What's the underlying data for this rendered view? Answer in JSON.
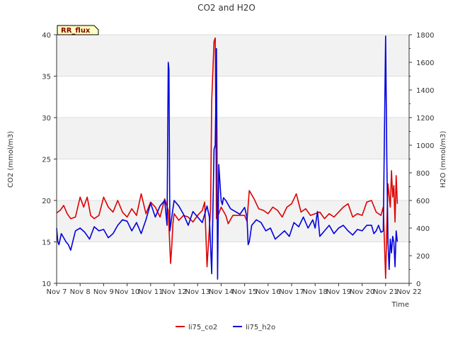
{
  "chart_data": {
    "type": "line",
    "title": "CO2 and H2O",
    "badge": "RR_flux",
    "xlabel": "Time",
    "ylabel_left": "CO2 (mmol/m3)",
    "ylabel_right": "H2O (mmol/m3)",
    "x_range": [
      7,
      22
    ],
    "x_ticks": [
      7,
      8,
      9,
      10,
      11,
      12,
      13,
      14,
      15,
      16,
      17,
      18,
      19,
      20,
      21,
      22
    ],
    "x_tick_labels": [
      "Nov 7",
      "Nov 8",
      "Nov 9",
      "Nov 10",
      "Nov 11",
      "Nov 12",
      "Nov 13",
      "Nov 14",
      "Nov 15",
      "Nov 16",
      "Nov 17",
      "Nov 18",
      "Nov 19",
      "Nov 20",
      "Nov 21",
      "Nov 22"
    ],
    "ylim_left": [
      10,
      40
    ],
    "yticks_left": [
      10,
      15,
      20,
      25,
      30,
      35,
      40
    ],
    "ylim_right": [
      0,
      1800
    ],
    "yticks_right": [
      0,
      200,
      400,
      600,
      800,
      1000,
      1200,
      1400,
      1600,
      1800
    ],
    "bands_left": [
      [
        15,
        20
      ],
      [
        25,
        30
      ],
      [
        35,
        40
      ]
    ],
    "series": [
      {
        "name": "li75_co2",
        "axis": "left",
        "color": "#dd0000",
        "x": [
          7.0,
          7.15,
          7.3,
          7.45,
          7.6,
          7.8,
          8.0,
          8.15,
          8.3,
          8.45,
          8.6,
          8.8,
          9.0,
          9.2,
          9.4,
          9.6,
          9.8,
          10.0,
          10.2,
          10.4,
          10.6,
          10.8,
          11.0,
          11.2,
          11.4,
          11.6,
          11.75,
          11.85,
          11.9,
          11.95,
          12.0,
          12.2,
          12.4,
          12.6,
          12.8,
          13.0,
          13.2,
          13.3,
          13.4,
          13.55,
          13.6,
          13.7,
          13.75,
          13.8,
          13.9,
          14.0,
          14.2,
          14.3,
          14.5,
          14.7,
          14.9,
          15.0,
          15.1,
          15.2,
          15.4,
          15.6,
          15.8,
          16.0,
          16.2,
          16.4,
          16.6,
          16.8,
          17.0,
          17.2,
          17.4,
          17.6,
          17.8,
          18.0,
          18.2,
          18.4,
          18.6,
          18.8,
          19.0,
          19.2,
          19.4,
          19.6,
          19.8,
          20.0,
          20.2,
          20.4,
          20.6,
          20.8,
          20.9,
          21.0,
          21.05,
          21.1,
          21.2,
          21.25,
          21.3,
          21.35,
          21.4,
          21.45,
          21.5
        ],
        "values": [
          18.5,
          18.8,
          19.4,
          18.4,
          17.8,
          18.0,
          20.4,
          19.2,
          20.4,
          18.2,
          17.8,
          18.2,
          20.4,
          19.2,
          18.6,
          20.0,
          18.6,
          18.0,
          19.0,
          18.2,
          20.8,
          18.4,
          19.8,
          19.2,
          18.0,
          20.2,
          18.8,
          12.4,
          14.5,
          17.2,
          18.4,
          17.6,
          18.2,
          18.0,
          17.4,
          18.2,
          18.8,
          19.8,
          12.0,
          19.0,
          32.0,
          39.2,
          39.6,
          17.8,
          18.4,
          19.2,
          18.2,
          17.2,
          18.2,
          18.2,
          18.2,
          18.2,
          17.5,
          21.2,
          20.2,
          19.0,
          18.8,
          18.4,
          19.2,
          18.8,
          18.0,
          19.2,
          19.6,
          20.8,
          18.6,
          19.0,
          18.2,
          18.4,
          18.6,
          17.8,
          18.4,
          18.0,
          18.6,
          19.2,
          19.6,
          18.0,
          18.4,
          18.2,
          19.8,
          20.0,
          18.6,
          18.2,
          19.2,
          10.6,
          16.8,
          22.0,
          19.2,
          23.6,
          20.4,
          21.8,
          17.4,
          23.0,
          19.6
        ]
      },
      {
        "name": "li75_h2o",
        "axis": "right",
        "color": "#0000dd",
        "x": [
          7.0,
          7.05,
          7.1,
          7.2,
          7.3,
          7.4,
          7.5,
          7.6,
          7.7,
          7.8,
          8.0,
          8.2,
          8.4,
          8.6,
          8.8,
          9.0,
          9.2,
          9.4,
          9.6,
          9.8,
          10.0,
          10.2,
          10.4,
          10.6,
          10.8,
          11.0,
          11.2,
          11.4,
          11.6,
          11.7,
          11.75,
          11.78,
          11.82,
          11.9,
          12.0,
          12.2,
          12.4,
          12.6,
          12.8,
          13.0,
          13.2,
          13.3,
          13.4,
          13.5,
          13.6,
          13.7,
          13.75,
          13.8,
          13.85,
          13.9,
          14.0,
          14.05,
          14.1,
          14.2,
          14.4,
          14.6,
          14.8,
          15.0,
          15.1,
          15.15,
          15.2,
          15.3,
          15.5,
          15.7,
          15.9,
          16.1,
          16.3,
          16.5,
          16.7,
          16.9,
          17.1,
          17.3,
          17.5,
          17.7,
          17.9,
          18.0,
          18.1,
          18.2,
          18.4,
          18.6,
          18.8,
          19.0,
          19.2,
          19.4,
          19.6,
          19.8,
          20.0,
          20.2,
          20.4,
          20.5,
          20.6,
          20.7,
          20.8,
          20.9,
          21.0,
          21.05,
          21.1,
          21.15,
          21.2,
          21.25,
          21.3,
          21.35,
          21.4,
          21.45,
          21.5
        ],
        "values": [
          400,
          300,
          280,
          360,
          330,
          300,
          280,
          240,
          310,
          380,
          400,
          370,
          320,
          410,
          380,
          390,
          330,
          360,
          420,
          460,
          450,
          380,
          440,
          360,
          460,
          580,
          480,
          560,
          600,
          420,
          1600,
          1550,
          380,
          480,
          600,
          560,
          500,
          420,
          520,
          480,
          440,
          500,
          560,
          480,
          70,
          970,
          1000,
          1700,
          30,
          860,
          600,
          570,
          620,
          600,
          540,
          520,
          500,
          550,
          480,
          280,
          300,
          420,
          460,
          440,
          380,
          400,
          320,
          350,
          380,
          340,
          440,
          410,
          480,
          400,
          460,
          400,
          520,
          340,
          380,
          420,
          360,
          400,
          420,
          380,
          350,
          390,
          380,
          420,
          420,
          360,
          380,
          420,
          370,
          380,
          1790,
          900,
          300,
          100,
          320,
          220,
          340,
          300,
          120,
          380,
          300
        ]
      }
    ],
    "legend": [
      {
        "label": "li75_co2",
        "color": "#dd0000"
      },
      {
        "label": "li75_h2o",
        "color": "#0000dd"
      }
    ]
  }
}
